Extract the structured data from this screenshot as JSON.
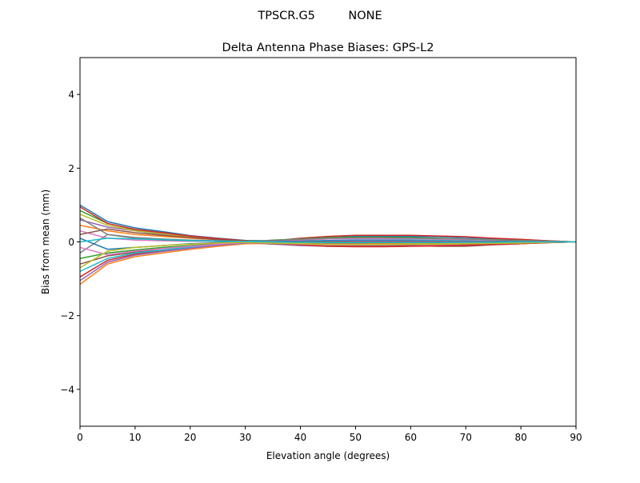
{
  "chart_data": {
    "type": "line",
    "suptitle": "TPSCR.G5         NONE",
    "title": "Delta Antenna Phase Biases: GPS-L2",
    "xlabel": "Elevation angle (degrees)",
    "ylabel": "Bias from mean (mm)",
    "xlim": [
      0,
      90
    ],
    "ylim": [
      -5,
      5
    ],
    "xticks": [
      "0",
      "10",
      "20",
      "30",
      "40",
      "50",
      "60",
      "70",
      "80",
      "90"
    ],
    "yticks": [
      "−4",
      "−2",
      "0",
      "2",
      "4"
    ],
    "grid": false,
    "colors": [
      "#1f77b4",
      "#ff7f0e",
      "#2ca02c",
      "#d62728",
      "#9467bd",
      "#8c564b",
      "#e377c2",
      "#7f7f7f",
      "#bcbd22",
      "#17becf"
    ],
    "x": [
      0,
      5,
      10,
      15,
      20,
      25,
      30,
      35,
      40,
      45,
      50,
      55,
      60,
      65,
      70,
      75,
      80,
      85,
      90
    ],
    "series": [
      {
        "values": [
          1.0,
          0.55,
          0.38,
          0.28,
          0.17,
          0.1,
          0.04,
          0.03,
          0.06,
          0.12,
          0.15,
          0.15,
          0.15,
          0.14,
          0.12,
          0.09,
          0.06,
          0.03,
          0
        ]
      },
      {
        "values": [
          -1.15,
          -0.6,
          -0.4,
          -0.3,
          -0.2,
          -0.12,
          -0.05,
          -0.04,
          -0.06,
          -0.09,
          -0.1,
          -0.1,
          -0.1,
          -0.09,
          -0.08,
          -0.06,
          -0.04,
          -0.02,
          0
        ]
      },
      {
        "values": [
          0.85,
          0.5,
          0.33,
          0.24,
          0.15,
          0.08,
          0.03,
          0.02,
          0.05,
          0.08,
          0.1,
          0.1,
          0.1,
          0.09,
          0.08,
          0.06,
          0.04,
          0.02,
          0
        ]
      },
      {
        "values": [
          -0.95,
          -0.5,
          -0.33,
          -0.24,
          -0.15,
          -0.08,
          -0.03,
          0.03,
          0.1,
          0.15,
          0.18,
          0.18,
          0.18,
          0.16,
          0.14,
          0.1,
          0.07,
          0.03,
          0
        ]
      },
      {
        "values": [
          0.6,
          0.4,
          0.3,
          0.2,
          0.12,
          0.06,
          0,
          -0.06,
          -0.1,
          -0.12,
          -0.12,
          -0.12,
          -0.11,
          -0.1,
          -0.08,
          -0.06,
          -0.04,
          -0.02,
          0
        ]
      },
      {
        "values": [
          -0.6,
          -0.38,
          -0.28,
          -0.18,
          -0.12,
          -0.06,
          -0.02,
          -0.06,
          -0.08,
          -0.1,
          -0.1,
          -0.1,
          -0.1,
          -0.12,
          -0.12,
          -0.08,
          -0.05,
          -0.02,
          0
        ]
      },
      {
        "values": [
          0.3,
          0.1,
          0.05,
          0.03,
          0.02,
          0.01,
          0,
          0.02,
          0.05,
          0.08,
          0.08,
          0.08,
          0.08,
          0.07,
          0.06,
          0.05,
          0.03,
          0.01,
          0
        ]
      },
      {
        "values": [
          -0.3,
          0.2,
          0.1,
          0.05,
          0.03,
          0.02,
          0,
          -0.02,
          -0.04,
          -0.05,
          -0.05,
          -0.05,
          -0.05,
          -0.04,
          -0.04,
          -0.03,
          -0.02,
          -0.01,
          0
        ]
      },
      {
        "values": [
          0.75,
          0.45,
          0.3,
          0.22,
          0.14,
          0.08,
          0.03,
          0,
          -0.02,
          0,
          0.02,
          0.03,
          0.03,
          0.03,
          0.02,
          0.02,
          0.01,
          0,
          0
        ]
      },
      {
        "values": [
          -0.8,
          -0.45,
          -0.3,
          -0.22,
          -0.14,
          -0.08,
          -0.03,
          0,
          0.02,
          0.04,
          0.05,
          0.05,
          0.05,
          0.04,
          0.03,
          0.02,
          0.01,
          0,
          0
        ]
      },
      {
        "values": [
          0.1,
          -0.2,
          -0.15,
          -0.1,
          -0.05,
          -0.02,
          0,
          0.01,
          0.02,
          0.03,
          0.03,
          0.03,
          0.03,
          0.02,
          0.02,
          0.01,
          0.01,
          0,
          0
        ]
      },
      {
        "values": [
          0.45,
          0.3,
          0.2,
          0.15,
          0.1,
          0.06,
          0.02,
          -0.02,
          -0.05,
          -0.06,
          -0.06,
          -0.05,
          -0.05,
          -0.04,
          -0.04,
          -0.03,
          -0.02,
          -0.01,
          0
        ]
      },
      {
        "values": [
          -0.45,
          -0.3,
          -0.22,
          -0.15,
          -0.1,
          -0.05,
          0,
          0.05,
          0.08,
          0.12,
          0.13,
          0.13,
          0.12,
          0.1,
          0.08,
          0.06,
          0.04,
          0.02,
          0
        ]
      },
      {
        "values": [
          0.95,
          0.5,
          0.34,
          0.25,
          0.16,
          0.09,
          0.03,
          -0.03,
          -0.08,
          -0.12,
          -0.13,
          -0.13,
          -0.12,
          -0.11,
          -0.09,
          -0.07,
          -0.05,
          -0.02,
          0
        ]
      },
      {
        "values": [
          -1.05,
          -0.55,
          -0.36,
          -0.26,
          -0.17,
          -0.09,
          -0.03,
          -0.01,
          0,
          0.01,
          0.02,
          0.02,
          0.02,
          0.02,
          0.01,
          0.01,
          0,
          0,
          0
        ]
      },
      {
        "values": [
          0.2,
          0.35,
          0.25,
          0.18,
          0.12,
          0.06,
          0.02,
          0,
          0,
          0,
          0,
          0,
          0,
          0,
          0,
          0,
          0,
          0,
          0
        ]
      },
      {
        "values": [
          -0.15,
          -0.35,
          -0.25,
          -0.18,
          -0.12,
          -0.06,
          -0.02,
          -0.04,
          -0.06,
          -0.08,
          -0.08,
          -0.08,
          -0.07,
          -0.06,
          -0.05,
          -0.04,
          -0.03,
          -0.01,
          0
        ]
      },
      {
        "values": [
          0.65,
          0.2,
          0.12,
          0.08,
          0.05,
          0.03,
          0.01,
          0.04,
          0.07,
          0.1,
          0.11,
          0.11,
          0.1,
          0.09,
          0.08,
          0.06,
          0.04,
          0.02,
          0
        ]
      },
      {
        "values": [
          -0.7,
          -0.25,
          -0.15,
          -0.1,
          -0.06,
          -0.03,
          -0.01,
          -0.03,
          -0.05,
          -0.07,
          -0.07,
          -0.07,
          -0.06,
          -0.06,
          -0.05,
          -0.04,
          -0.03,
          -0.01,
          0
        ]
      },
      {
        "values": [
          0.0,
          0.1,
          0.08,
          0.06,
          0.04,
          0.02,
          0.01,
          0,
          -0.01,
          -0.02,
          -0.02,
          -0.02,
          -0.02,
          -0.02,
          -0.01,
          -0.01,
          0,
          0,
          0
        ]
      }
    ]
  }
}
